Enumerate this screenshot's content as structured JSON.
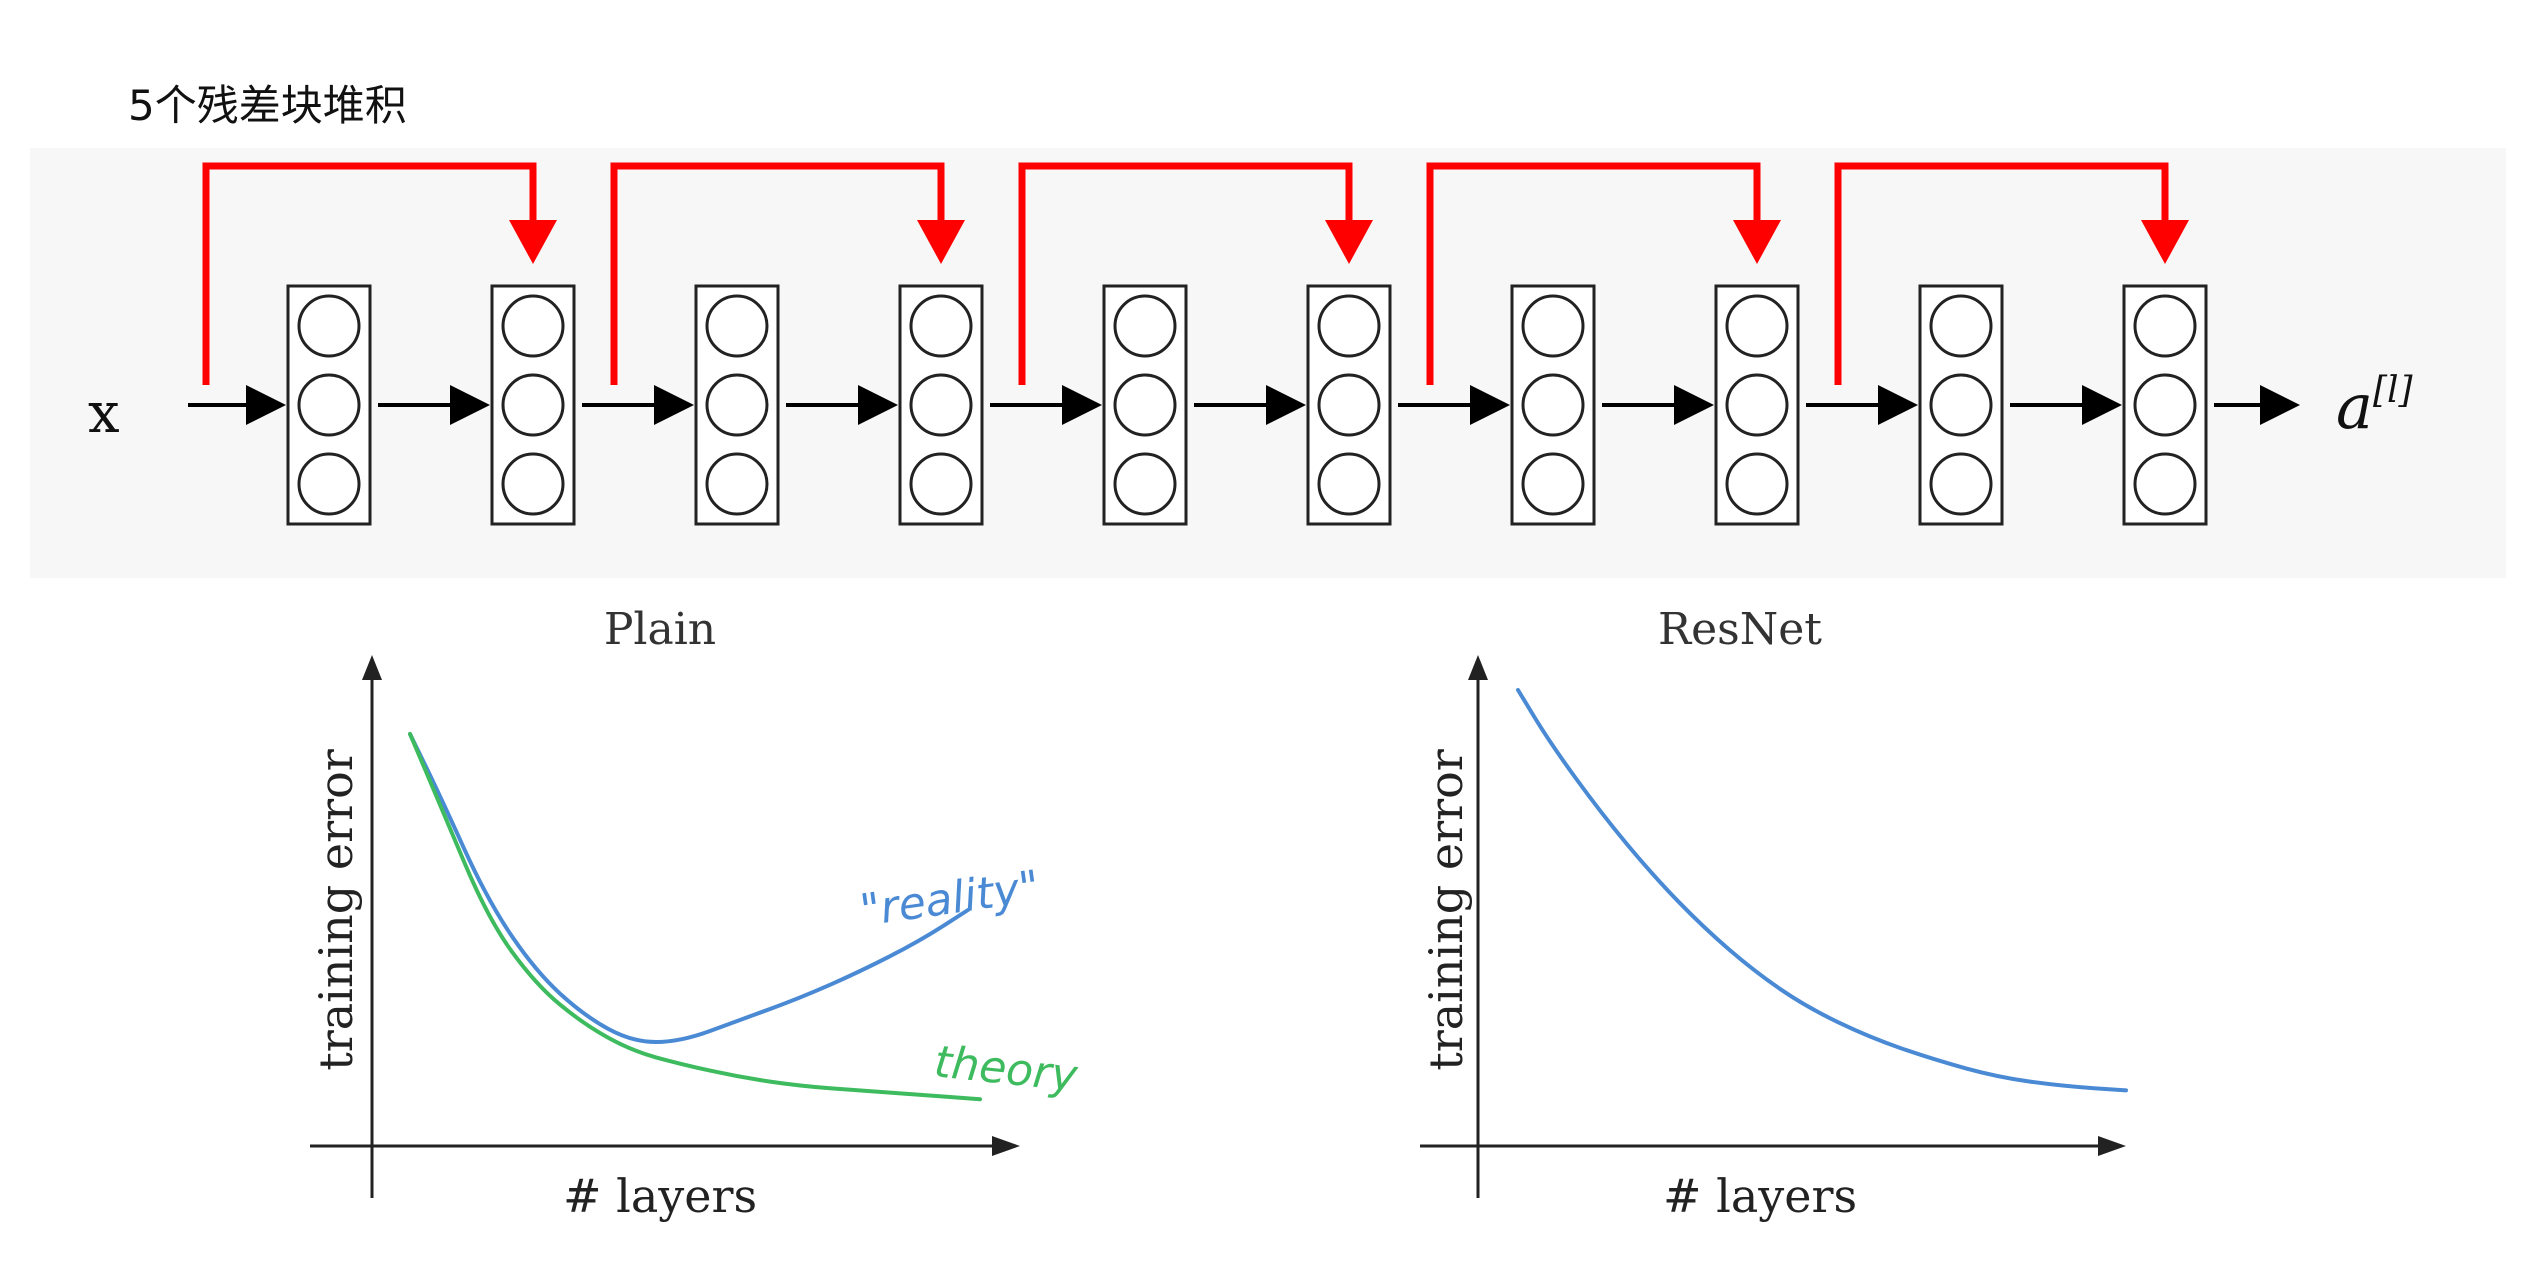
{
  "title": "5个残差块堆积",
  "network": {
    "input_label": "x",
    "output_label_base": "a",
    "output_label_sup": "[l]",
    "layer_count": 10,
    "neurons_per_layer": 3,
    "residual_blocks": 5,
    "skip_color": "#ff0000",
    "arrow_color": "#000000"
  },
  "chart_data": [
    {
      "type": "line",
      "title": "Plain",
      "xlabel": "# layers",
      "ylabel": "training error",
      "series": [
        {
          "name": "\"reality\"",
          "color": "#4a8ad4",
          "x": [
            0.05,
            0.1,
            0.18,
            0.26,
            0.34,
            0.42,
            0.5,
            0.6,
            0.7,
            0.8,
            0.9,
            0.98
          ],
          "y": [
            0.9,
            0.76,
            0.52,
            0.36,
            0.26,
            0.2,
            0.2,
            0.25,
            0.3,
            0.36,
            0.43,
            0.5
          ]
        },
        {
          "name": "theory",
          "color": "#3dbb5e",
          "x": [
            0.05,
            0.1,
            0.18,
            0.26,
            0.34,
            0.42,
            0.5,
            0.6,
            0.7,
            0.8,
            0.9,
            1.0
          ],
          "y": [
            0.9,
            0.74,
            0.48,
            0.33,
            0.24,
            0.18,
            0.15,
            0.12,
            0.1,
            0.09,
            0.08,
            0.07
          ]
        }
      ]
    },
    {
      "type": "line",
      "title": "ResNet",
      "xlabel": "# layers",
      "ylabel": "training error",
      "series": [
        {
          "color": "#4a8ad4",
          "x": [
            0.05,
            0.1,
            0.18,
            0.26,
            0.34,
            0.42,
            0.5,
            0.6,
            0.7,
            0.8,
            0.9,
            1.0
          ],
          "y": [
            1.0,
            0.88,
            0.72,
            0.58,
            0.46,
            0.36,
            0.28,
            0.21,
            0.16,
            0.12,
            0.1,
            0.09
          ]
        }
      ]
    }
  ]
}
